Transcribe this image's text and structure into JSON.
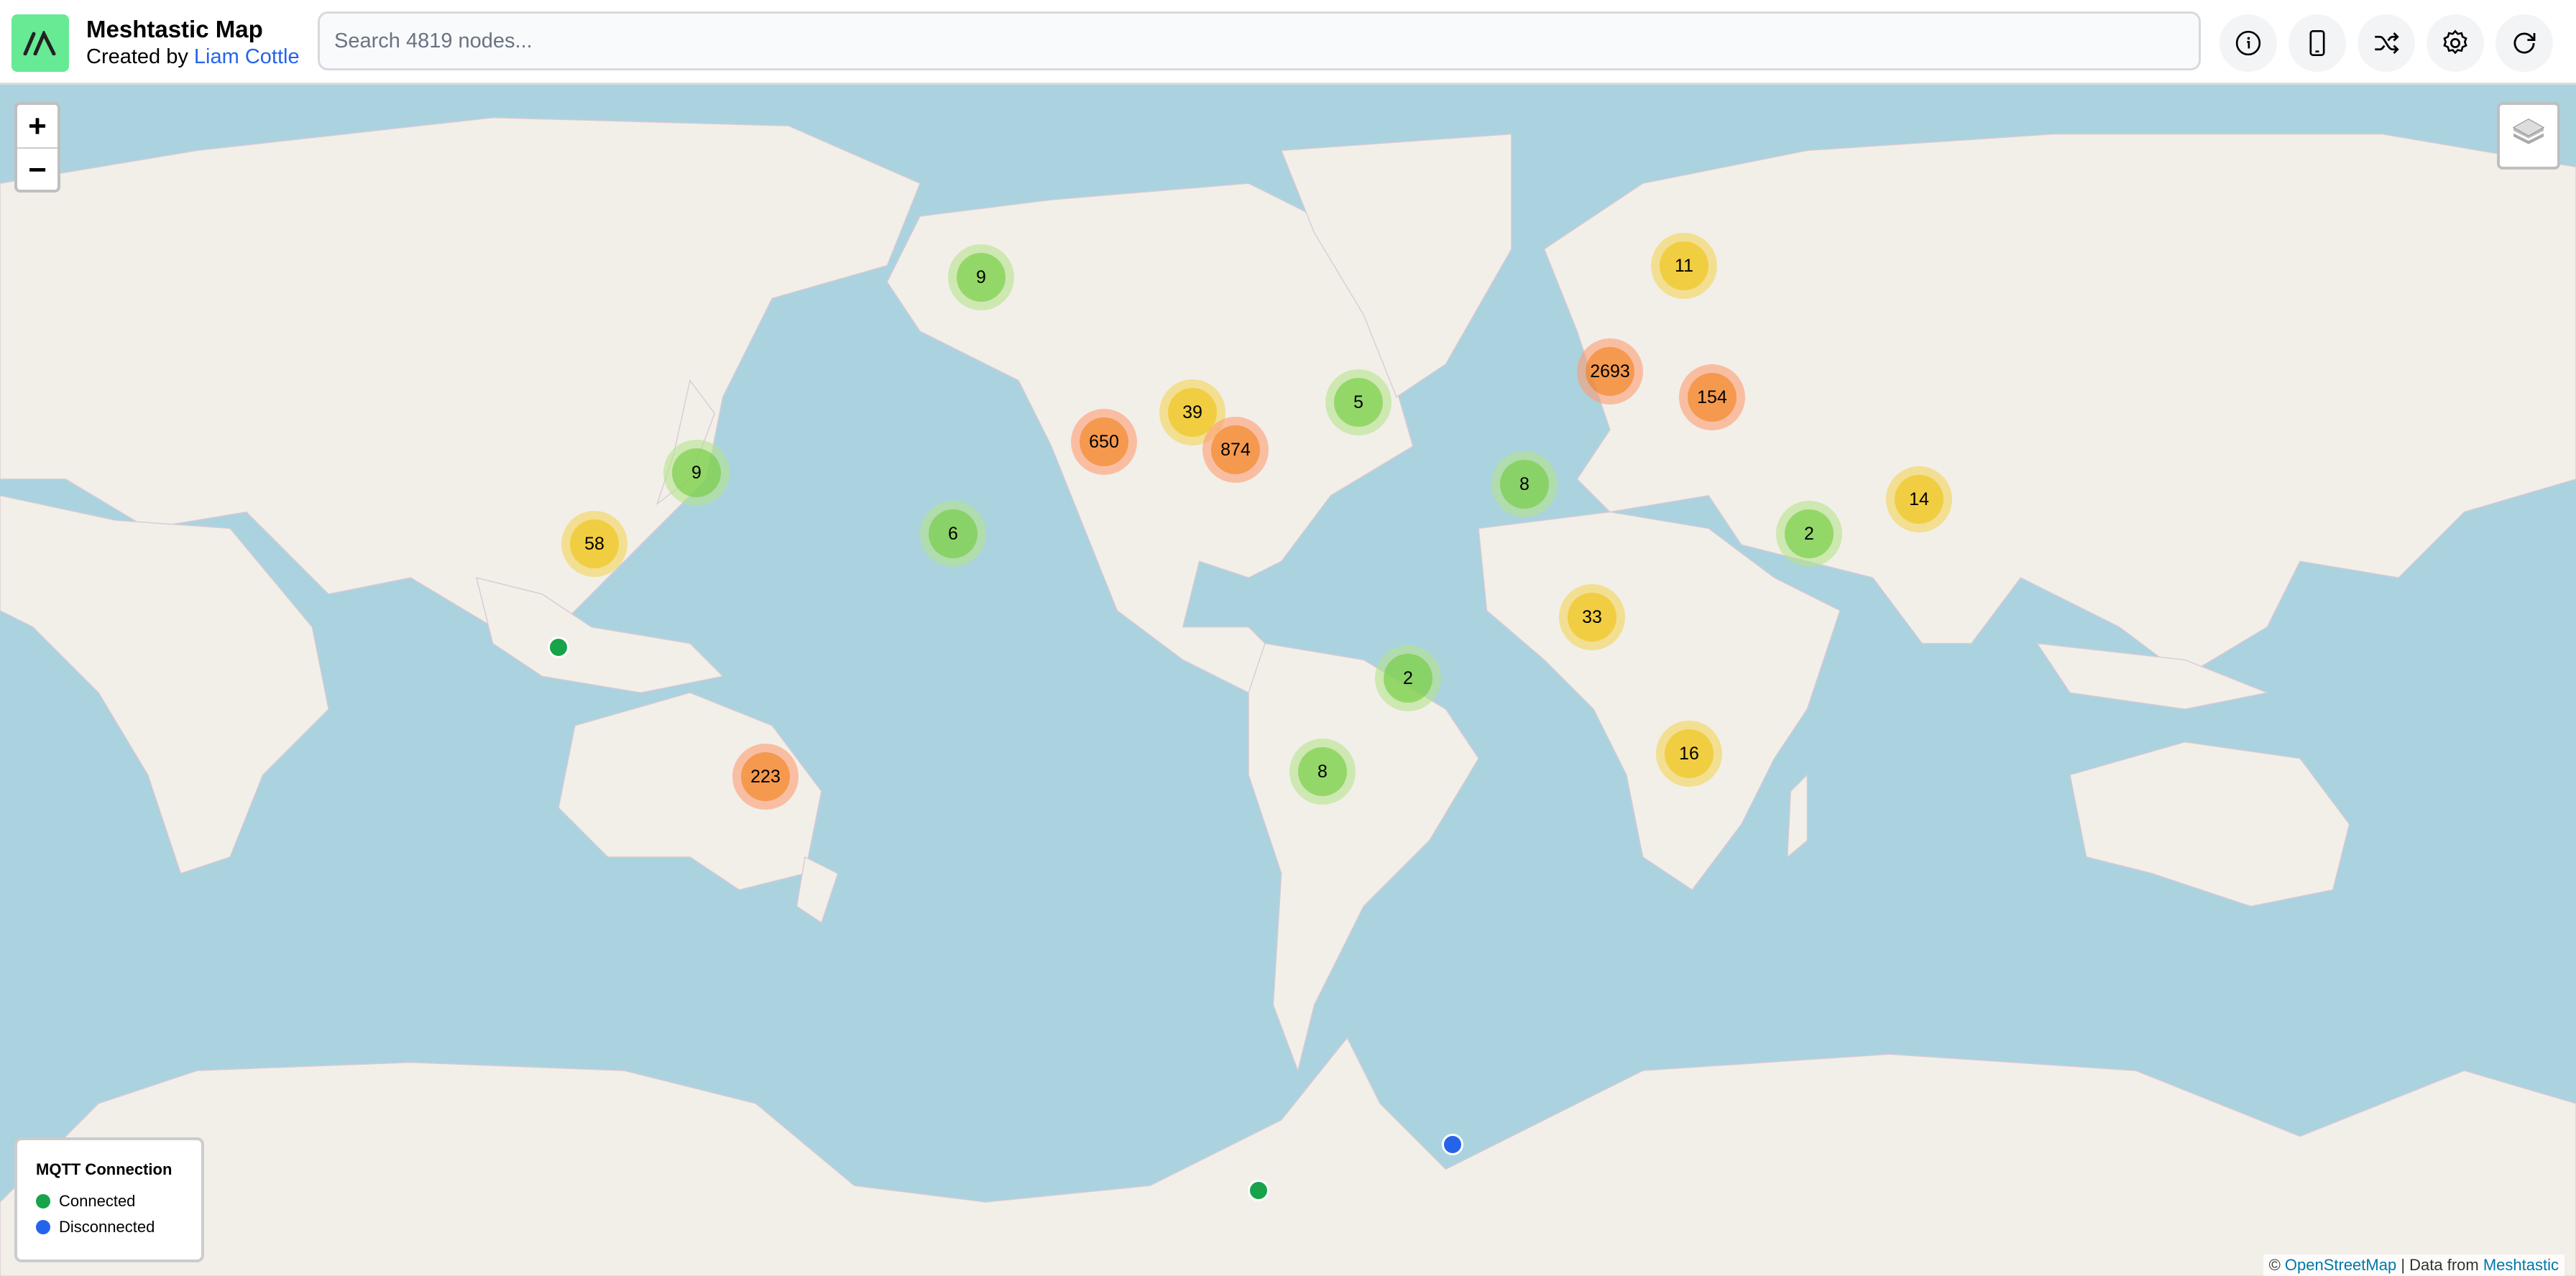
{
  "header": {
    "title": "Meshtastic Map",
    "subtitle_prefix": "Created by ",
    "author_link": "Liam Cottle",
    "search_placeholder": "Search 4819 nodes...",
    "search_value": "",
    "buttons": [
      {
        "name": "info-button",
        "icon": "info-icon"
      },
      {
        "name": "device-button",
        "icon": "phone-icon"
      },
      {
        "name": "shuffle-button",
        "icon": "shuffle-icon"
      },
      {
        "name": "settings-button",
        "icon": "gear-icon"
      },
      {
        "name": "refresh-button",
        "icon": "refresh-icon"
      }
    ]
  },
  "map": {
    "zoom_in": "+",
    "zoom_out": "−",
    "layers_icon": "layers-icon",
    "clusters": [
      {
        "count": "9",
        "level": "small"
      },
      {
        "count": "11",
        "level": "medium"
      },
      {
        "count": "2693",
        "level": "large"
      },
      {
        "count": "154",
        "level": "large"
      },
      {
        "count": "5",
        "level": "small"
      },
      {
        "count": "39",
        "level": "medium"
      },
      {
        "count": "650",
        "level": "large"
      },
      {
        "count": "874",
        "level": "large"
      },
      {
        "count": "9",
        "level": "small"
      },
      {
        "count": "8",
        "level": "small"
      },
      {
        "count": "14",
        "level": "medium"
      },
      {
        "count": "58",
        "level": "medium"
      },
      {
        "count": "6",
        "level": "small"
      },
      {
        "count": "2",
        "level": "small"
      },
      {
        "count": "33",
        "level": "medium"
      },
      {
        "count": "2",
        "level": "small"
      },
      {
        "count": "223",
        "level": "large"
      },
      {
        "count": "8",
        "level": "small"
      },
      {
        "count": "16",
        "level": "medium"
      }
    ],
    "nodes": [
      {
        "status": "connected"
      },
      {
        "status": "disconnected"
      },
      {
        "status": "connected"
      }
    ]
  },
  "legend": {
    "title": "MQTT Connection",
    "items": [
      {
        "label": "Connected",
        "color": "#16a34a"
      },
      {
        "label": "Disconnected",
        "color": "#2563eb"
      }
    ]
  },
  "attribution": {
    "prefix": "© ",
    "osm": "OpenStreetMap",
    "separator": " | Data from ",
    "meshtastic": "Meshtastic"
  },
  "colors": {
    "ocean": "#aad3df",
    "land": "#f2efe9",
    "brand": "#67ea94",
    "link": "#2563eb"
  }
}
